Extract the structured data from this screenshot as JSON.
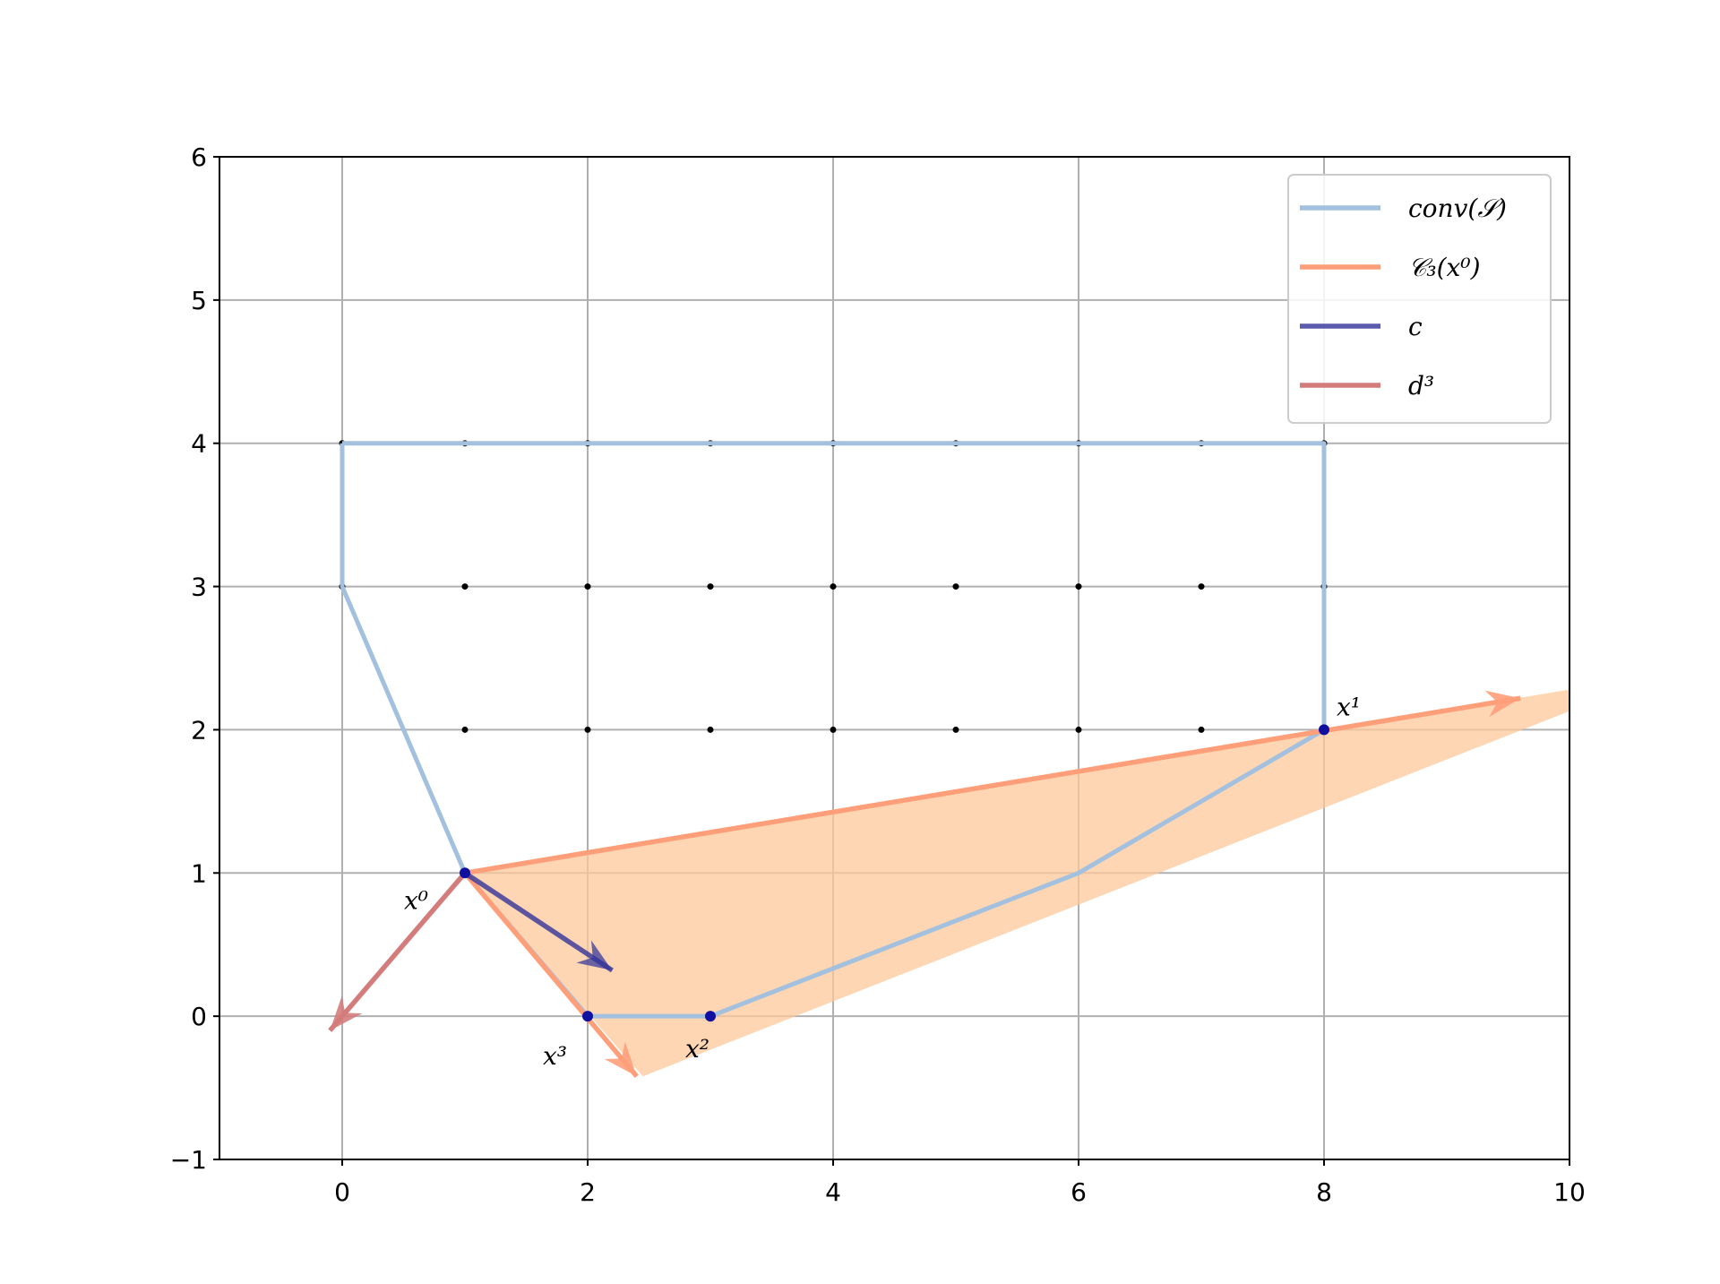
{
  "chart_data": {
    "type": "line",
    "xlim": [
      -1,
      10
    ],
    "ylim": [
      -1,
      6
    ],
    "xticks": [
      0,
      2,
      4,
      6,
      8,
      10
    ],
    "yticks": [
      {
        "value": -1,
        "label": "−1"
      },
      0,
      1,
      2,
      3,
      4,
      5,
      6
    ],
    "grid": true,
    "legend": "upper right",
    "cone_fill": {
      "color": "#fdc89a",
      "x": [
        1,
        10,
        10,
        2.45
      ],
      "y": [
        1,
        2.28,
        2.13,
        -0.42
      ]
    },
    "points": {
      "color": "#000000",
      "x": [
        0,
        1,
        2,
        3,
        4,
        5,
        6,
        7,
        8,
        0,
        1,
        2,
        3,
        4,
        5,
        6,
        7,
        8,
        1,
        2,
        3,
        4,
        5,
        6,
        7
      ],
      "y": [
        4,
        4,
        4,
        4,
        4,
        4,
        4,
        4,
        4,
        3,
        3,
        3,
        3,
        3,
        3,
        3,
        3,
        3,
        2,
        2,
        2,
        2,
        2,
        2,
        2
      ]
    },
    "series": [
      {
        "name": "conv(𝒮)",
        "color": "#a3c1de",
        "arrow": false,
        "x": [
          0,
          8,
          8,
          6,
          3,
          2,
          1,
          0,
          0
        ],
        "y": [
          4,
          4,
          2,
          1,
          0,
          0,
          1,
          3,
          4
        ]
      },
      {
        "name": "𝒞₃(x⁰)",
        "color": "#ff9f7a",
        "arrow": true,
        "x": [
          1,
          9.6,
          null,
          1,
          2.4
        ],
        "y": [
          1,
          2.22,
          null,
          1,
          -0.42
        ]
      },
      {
        "name": "c",
        "color": "#33339a",
        "arrow": true,
        "x": [
          1,
          2.2
        ],
        "y": [
          1,
          0.32
        ]
      },
      {
        "name": "d³",
        "color": "#d47c7c",
        "arrow": true,
        "x": [
          1,
          -0.1
        ],
        "y": [
          1,
          -0.1
        ]
      }
    ],
    "annotations": [
      {
        "text": "x⁰",
        "x": 1,
        "y": 1
      },
      {
        "text": "x¹",
        "x": 8,
        "y": 2
      },
      {
        "text": "x²",
        "x": 3,
        "y": 0
      },
      {
        "text": "x³",
        "x": 2,
        "y": 0
      }
    ]
  }
}
